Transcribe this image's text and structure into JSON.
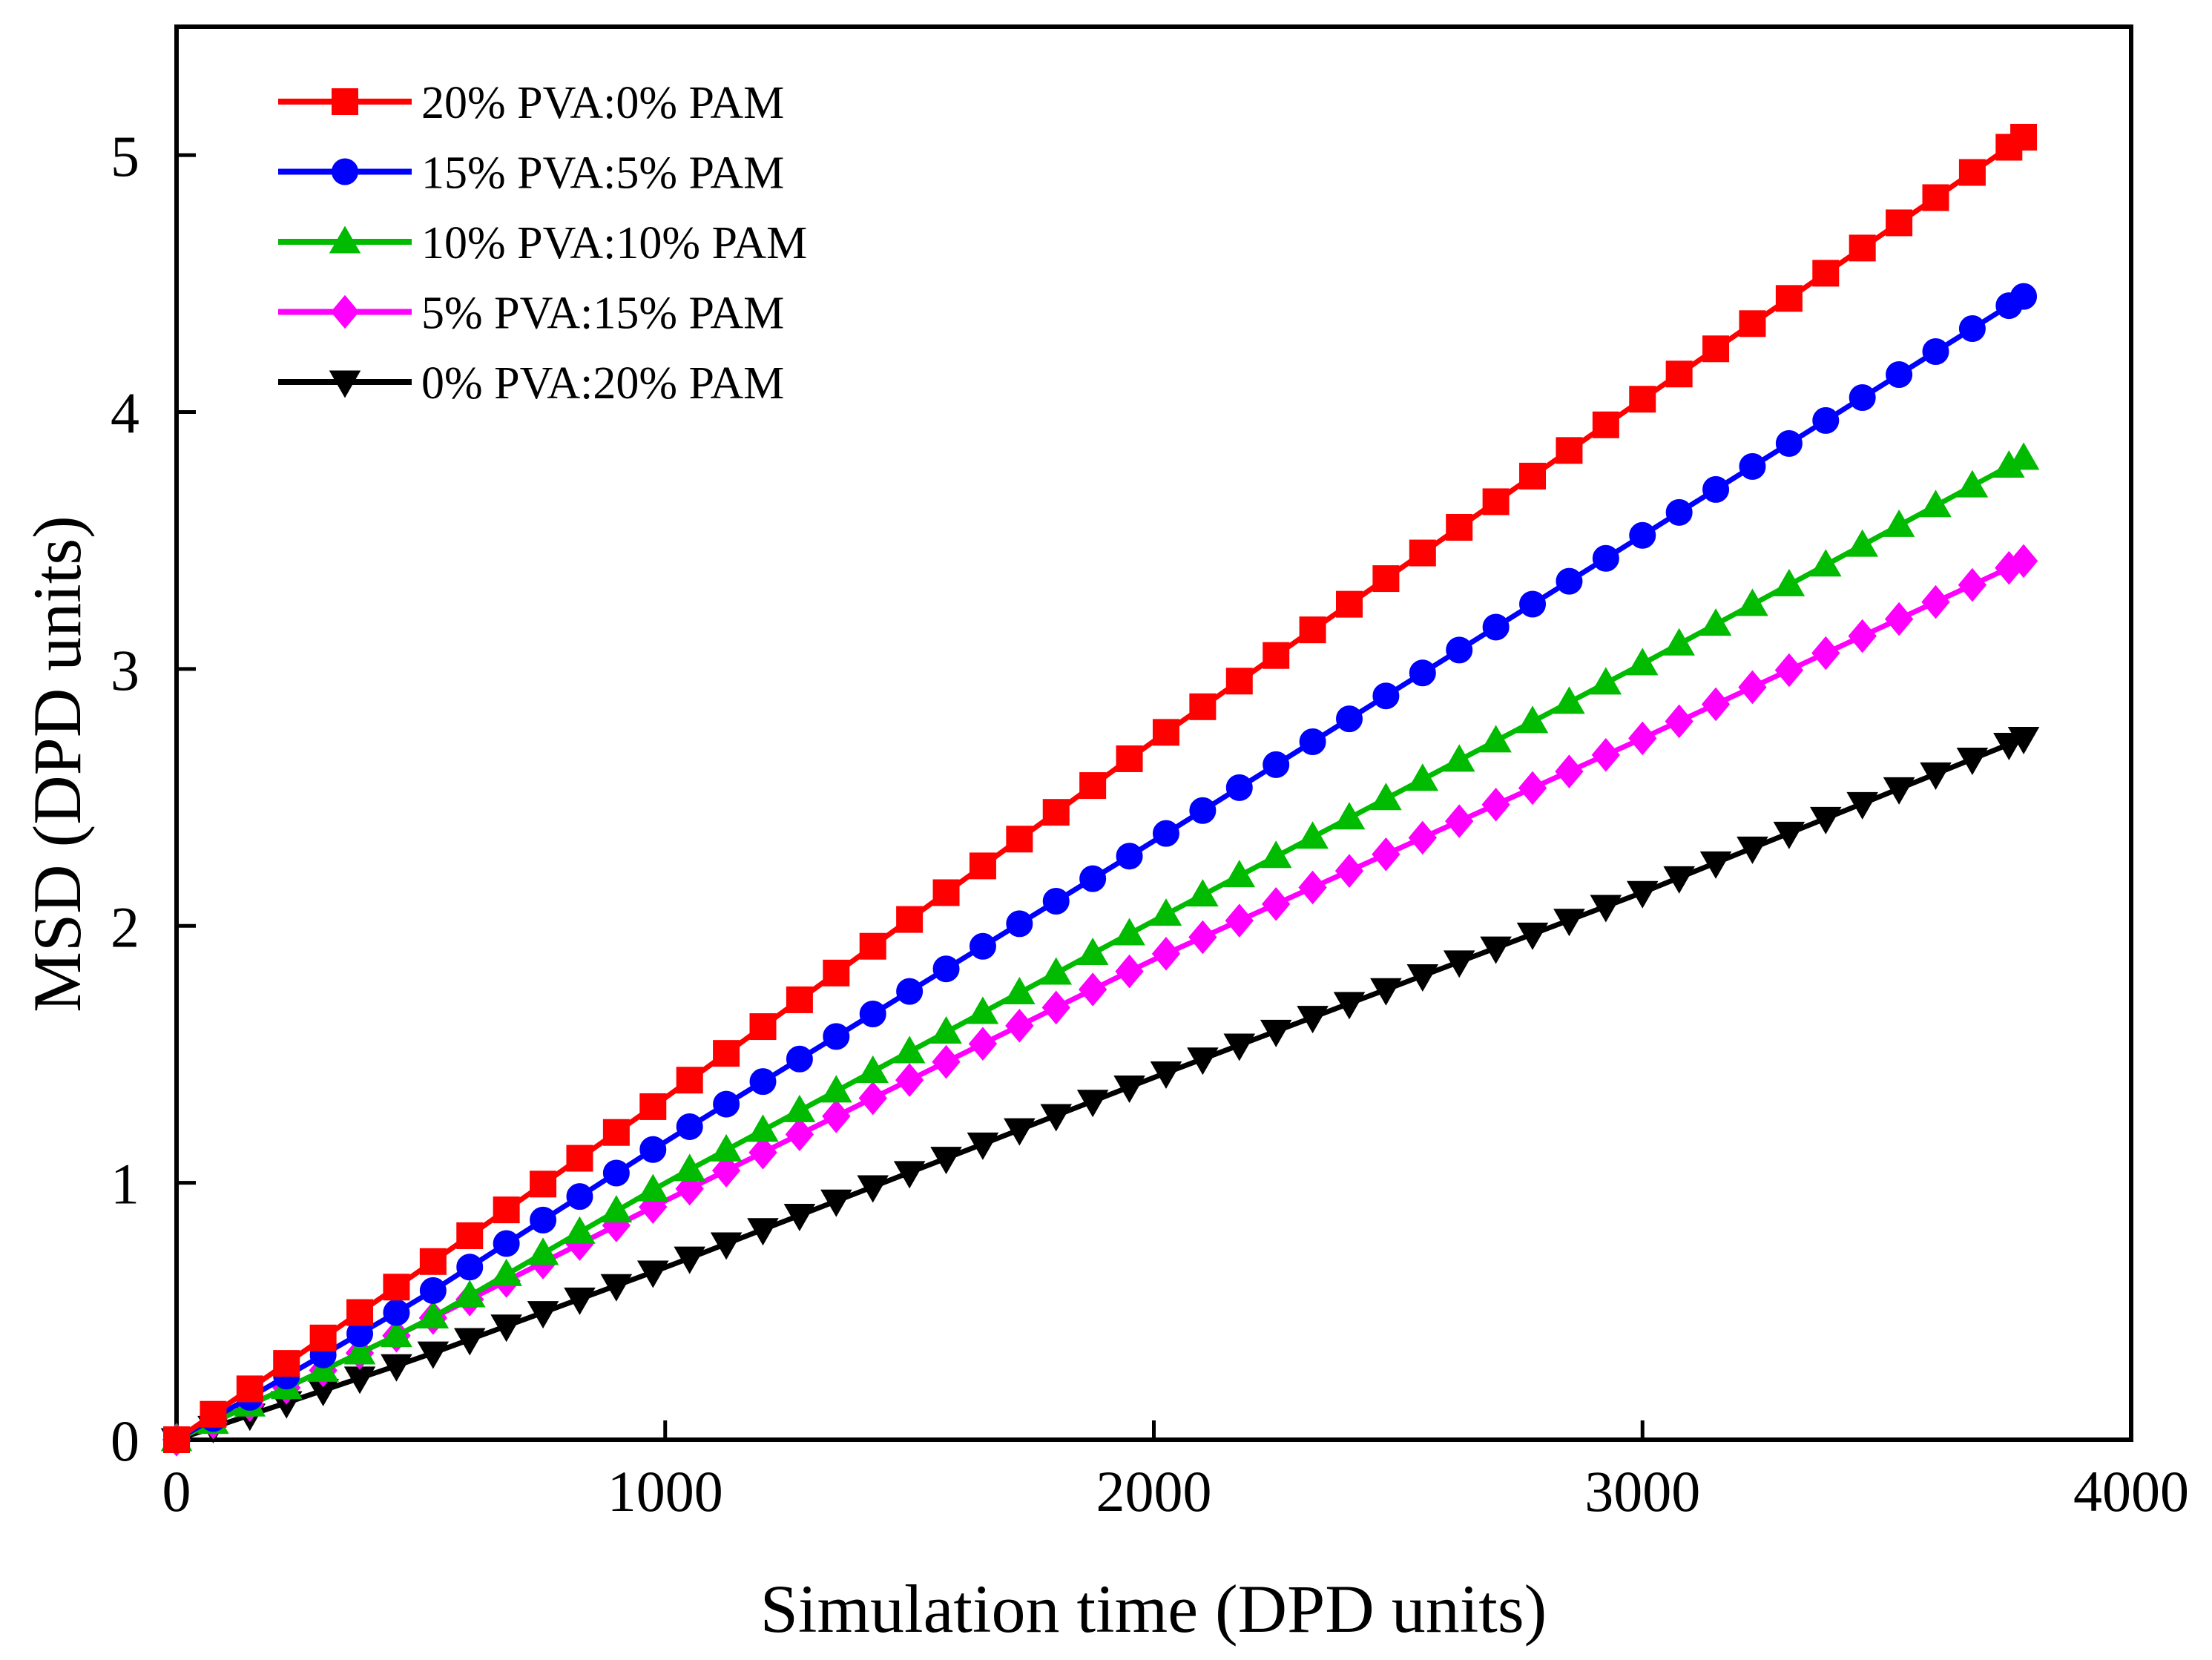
{
  "chart_data": {
    "type": "line",
    "title": "",
    "xlabel": "Simulation time (DPD units)",
    "ylabel": "MSD (DPD units)",
    "xlim": [
      0,
      4000
    ],
    "ylim": [
      0,
      5.5
    ],
    "x_ticks": [
      0,
      1000,
      2000,
      3000,
      4000
    ],
    "y_ticks": [
      0,
      1,
      2,
      3,
      4,
      5
    ],
    "x_tick_labels": [
      "0",
      "1000",
      "2000",
      "3000",
      "4000"
    ],
    "y_tick_labels": [
      "0",
      "1",
      "2",
      "3",
      "4",
      "5"
    ],
    "grid": false,
    "legend_position": "top-left",
    "x": {
      "start": 0,
      "end": 3780,
      "step": 75
    },
    "series": [
      {
        "name": "20% PVA:0% PAM",
        "color": "#ff0000",
        "marker": "square",
        "points": [
          [
            0,
            0
          ],
          [
            500,
            0.66
          ],
          [
            1000,
            1.33
          ],
          [
            2000,
            2.72
          ],
          [
            3000,
            4.05
          ],
          [
            3780,
            5.07
          ]
        ]
      },
      {
        "name": "15% PVA:5% PAM",
        "color": "#0000ff",
        "marker": "circle",
        "points": [
          [
            0,
            0
          ],
          [
            500,
            0.55
          ],
          [
            1000,
            1.16
          ],
          [
            2000,
            2.33
          ],
          [
            3000,
            3.52
          ],
          [
            3780,
            4.45
          ]
        ]
      },
      {
        "name": "10% PVA:10% PAM",
        "color": "#00bb00",
        "marker": "triangle-up",
        "points": [
          [
            0,
            0
          ],
          [
            500,
            0.45
          ],
          [
            1000,
            1.0
          ],
          [
            2000,
            2.02
          ],
          [
            3000,
            3.02
          ],
          [
            3780,
            3.82
          ]
        ]
      },
      {
        "name": "5% PVA:15% PAM",
        "color": "#ff00ff",
        "marker": "diamond",
        "points": [
          [
            0,
            0
          ],
          [
            500,
            0.45
          ],
          [
            1000,
            0.93
          ],
          [
            2000,
            1.87
          ],
          [
            3000,
            2.73
          ],
          [
            3780,
            3.42
          ]
        ]
      },
      {
        "name": "0% PVA:20% PAM",
        "color": "#000000",
        "marker": "triangle-down",
        "points": [
          [
            0,
            0
          ],
          [
            500,
            0.32
          ],
          [
            1000,
            0.67
          ],
          [
            2000,
            1.41
          ],
          [
            3000,
            2.13
          ],
          [
            3780,
            2.73
          ]
        ]
      }
    ]
  }
}
